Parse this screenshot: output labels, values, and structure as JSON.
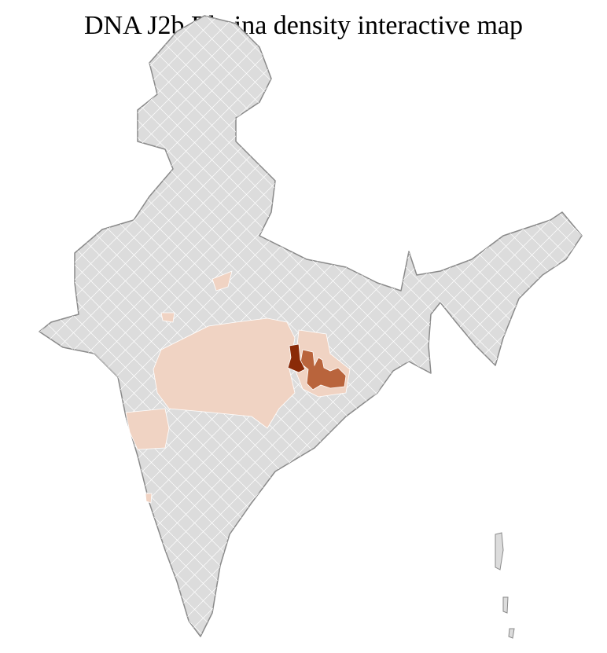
{
  "title": "DNA J2b Bhaina density interactive map",
  "colors": {
    "no_data": "#dcdcdc",
    "border": "#8a8a8a",
    "district_lines": "#ffffff",
    "low": "#f0d3c3",
    "medium": "#b9643c",
    "high": "#8a2a08"
  }
}
